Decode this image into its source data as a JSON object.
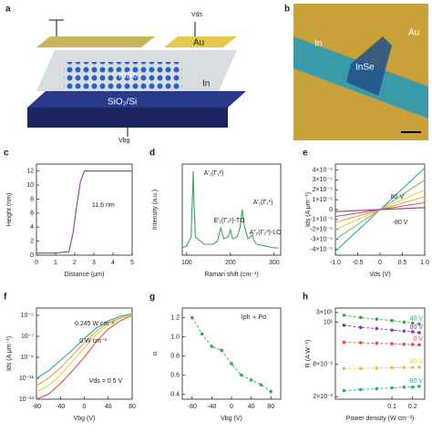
{
  "figure": {
    "a": {
      "panel": "a",
      "vds": "Vds",
      "au": "Au",
      "inse": "InSe",
      "in": "In",
      "substrate": "SiO₂/Si",
      "vbg": "Vbg"
    },
    "b": {
      "panel": "b",
      "in": "In",
      "inse": "InSe",
      "au": "Au"
    }
  },
  "chart_data": [
    {
      "type": "line",
      "panel": "c",
      "xlabel": "Distance (μm)",
      "ylabel": "Height (nm)",
      "x": [
        0,
        1,
        1.7,
        1.9,
        2.1,
        2.3,
        2.5,
        3,
        4,
        5
      ],
      "series": [
        {
          "color": "#9b3b9b",
          "values": [
            0.3,
            0.3,
            0.5,
            3,
            7,
            10.5,
            12,
            12,
            12,
            12
          ]
        }
      ],
      "xlim": [
        0,
        5
      ],
      "xticks": [
        0,
        1,
        2,
        3,
        4,
        5
      ],
      "ylim": [
        0,
        13
      ],
      "yticks": [
        0,
        2,
        4,
        6,
        8,
        10,
        12
      ],
      "annotations": [
        "11.6 nm"
      ]
    },
    {
      "type": "line",
      "panel": "d",
      "xlabel": "Raman shift (cm⁻¹)",
      "ylabel": "Intensity (a.u.)",
      "x": [
        90,
        100,
        110,
        113,
        115,
        117,
        120,
        140,
        160,
        170,
        178,
        185,
        195,
        200,
        205,
        215,
        222,
        227,
        232,
        240,
        250,
        255,
        260,
        280,
        300,
        310
      ],
      "series": [
        {
          "color": "#3aa655",
          "values": [
            0.08,
            0.1,
            0.2,
            0.6,
            0.92,
            0.55,
            0.2,
            0.12,
            0.12,
            0.15,
            0.3,
            0.18,
            0.2,
            0.28,
            0.18,
            0.2,
            0.3,
            0.5,
            0.32,
            0.18,
            0.22,
            0.15,
            0.12,
            0.1,
            0.08,
            0.08
          ]
        }
      ],
      "xlim": [
        90,
        315
      ],
      "xticks": [
        100,
        200,
        300
      ],
      "ylim": [
        0,
        1
      ],
      "yticks": [],
      "annotations": [
        "A′₁(Γ₁²)",
        "E′₁(Γ₃¹)-TO",
        "A′₁(Γ₁¹)",
        "A″₂(Γ₂³)-LO"
      ]
    },
    {
      "type": "line",
      "panel": "e",
      "xlabel": "Vds (V)",
      "ylabel": "Ids (A μm⁻¹)",
      "x": [
        -1,
        1
      ],
      "series": [
        {
          "color": "#2aa9a9",
          "values": [
            -4.2e-05,
            4.2e-05
          ]
        },
        {
          "color": "#7cc36a",
          "values": [
            -3e-05,
            3e-05
          ]
        },
        {
          "color": "#e6d34a",
          "values": [
            -2e-05,
            2e-05
          ]
        },
        {
          "color": "#f2a048",
          "values": [
            -1.3e-05,
            1.3e-05
          ]
        },
        {
          "color": "#e2504a",
          "values": [
            -7e-06,
            7e-06
          ]
        },
        {
          "color": "#8a3b9e",
          "values": [
            -2e-06,
            2e-06
          ]
        }
      ],
      "xlim": [
        -1,
        1
      ],
      "xticks": [
        {
          "value": -1,
          "label": "-1.0"
        },
        -0.5,
        0,
        0.5,
        {
          "value": 1,
          "label": "1.0"
        }
      ],
      "ylim": [
        -4.6e-05,
        4.6e-05
      ],
      "yticks": [
        {
          "value": 4e-05,
          "label": "4×10⁻⁵"
        },
        {
          "value": 3e-05,
          "label": "3×10⁻⁵"
        },
        {
          "value": 2e-05,
          "label": "2×10⁻⁵"
        },
        {
          "value": 1e-05,
          "label": "1×10⁻⁵"
        },
        0,
        {
          "value": -1e-05,
          "label": "-1×10⁻⁵"
        },
        {
          "value": -2e-05,
          "label": "-2×10⁻⁵"
        },
        {
          "value": -3e-05,
          "label": "-3×10⁻⁵"
        },
        {
          "value": -4e-05,
          "label": "-4×10⁻⁵"
        }
      ],
      "annotations": [
        "80 V",
        "-80 V"
      ]
    },
    {
      "type": "line",
      "panel": "f",
      "xlabel": "Vbg (V)",
      "ylabel": "Ids (A μm⁻¹)",
      "ylog": true,
      "x": [
        -80,
        -60,
        -40,
        -20,
        0,
        20,
        40,
        60,
        80
      ],
      "series": [
        {
          "color": "#2aa9a9",
          "values": [
            1e-11,
            5e-11,
            5e-10,
            5e-09,
            6e-08,
            6e-07,
            3e-06,
            8e-06,
            1.5e-05
          ]
        },
        {
          "color": "#f2a048",
          "values": [
            2e-12,
            1e-11,
            1e-10,
            1.5e-09,
            2.5e-08,
            3e-07,
            2e-06,
            6e-06,
            1.3e-05
          ]
        },
        {
          "color": "#e6d34a",
          "values": [
            5e-13,
            2e-12,
            2e-11,
            4e-10,
            8e-09,
            1.5e-07,
            1.2e-06,
            5e-06,
            1.2e-05
          ]
        },
        {
          "color": "#e2504a",
          "values": [
            1e-13,
            3e-13,
            3e-12,
            5e-11,
            1e-09,
            3e-08,
            5e-07,
            3e-06,
            1e-05
          ]
        }
      ],
      "xlim": [
        -80,
        80
      ],
      "xticks": [
        -80,
        -40,
        0,
        40,
        80
      ],
      "ylim": [
        1e-13,
        5e-05
      ],
      "yticks": [
        {
          "value": 1e-05,
          "label": "10⁻⁵"
        },
        {
          "value": 1e-07,
          "label": "10⁻⁷"
        },
        {
          "value": 1e-09,
          "label": "10⁻⁹"
        },
        {
          "value": 1e-11,
          "label": "10⁻¹¹"
        },
        {
          "value": 1e-13,
          "label": "10⁻¹³"
        }
      ],
      "annotations": [
        "0.245 W cm⁻²",
        "0 W cm⁻²",
        "Vds = 0.5 V"
      ]
    },
    {
      "type": "scatter",
      "panel": "g",
      "xlabel": "Vbg (V)",
      "ylabel": "α",
      "x": [
        -80,
        -60,
        -40,
        -20,
        0,
        20,
        40,
        60,
        80
      ],
      "series": [
        {
          "color": "#3aa655",
          "values": [
            1.2,
            1.03,
            0.9,
            0.86,
            0.72,
            0.6,
            0.55,
            0.5,
            0.43
          ]
        }
      ],
      "xlim": [
        -100,
        100
      ],
      "xticks": [
        -80,
        -40,
        0,
        40,
        80
      ],
      "ylim": [
        0.35,
        1.3
      ],
      "yticks": [
        0.4,
        0.6,
        0.8,
        {
          "value": 1,
          "label": "1.0"
        },
        1.2
      ],
      "annotations": [
        "Iph ∝ Pα"
      ]
    },
    {
      "type": "scatter",
      "panel": "h",
      "xlabel": "Power density (W cm⁻²)",
      "ylabel": "R (A W⁻¹)",
      "xlog": true,
      "ylog": true,
      "x": [
        0.02,
        0.035,
        0.06,
        0.1,
        0.15,
        0.2,
        0.25
      ],
      "series": [
        {
          "name": "40 V",
          "color": "#3aa655",
          "values": [
            22,
            17,
            14,
            12,
            10,
            9,
            8
          ]
        },
        {
          "name": "80 V",
          "color": "#8a3b9e",
          "values": [
            7,
            5.5,
            4.8,
            4,
            3.6,
            3.3,
            3
          ]
        },
        {
          "name": "0 V",
          "color": "#e2504a",
          "values": [
            1,
            0.95,
            0.9,
            0.85,
            0.8,
            0.78,
            0.75
          ]
        },
        {
          "name": "-40 V",
          "color": "#e6c43a",
          "values": [
            0.05,
            0.05,
            0.052,
            0.055,
            0.055,
            0.057,
            0.058
          ]
        },
        {
          "name": "-80 V",
          "color": "#2aa9a9",
          "values": [
            0.004,
            0.0045,
            0.005,
            0.0055,
            0.006,
            0.006,
            0.0065
          ]
        }
      ],
      "xlim": [
        0.015,
        0.3
      ],
      "xticks": [
        0.1,
        0.2
      ],
      "ylim": [
        0.0015,
        50
      ],
      "yticks": [
        {
          "value": 30,
          "label": "3×10¹"
        },
        {
          "value": 10,
          "label": "10¹"
        },
        {
          "value": 0.08,
          "label": "8×10⁻²"
        },
        {
          "value": 0.002,
          "label": "2×10⁻³"
        }
      ],
      "annotations": []
    }
  ]
}
